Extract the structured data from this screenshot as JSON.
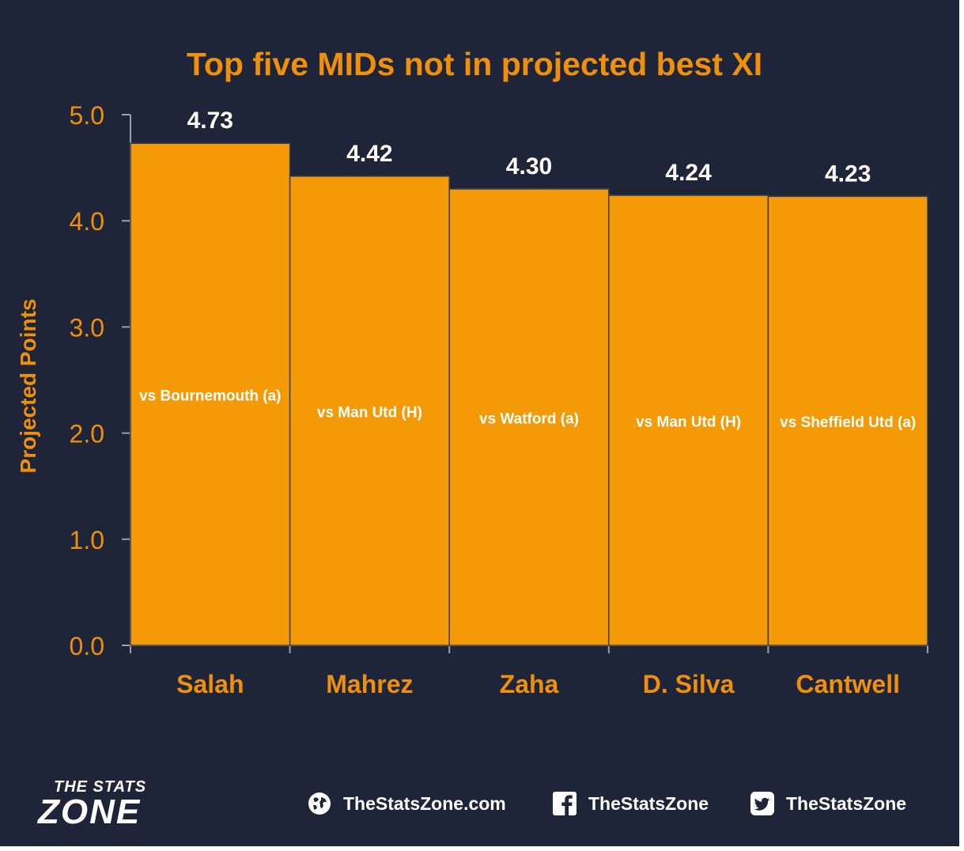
{
  "chart_data": {
    "type": "bar",
    "title": "Top five MIDs not in projected best XI",
    "ylabel": "Projected Points",
    "xlabel": "",
    "ylim": [
      0,
      5
    ],
    "yticks": [
      "0.0",
      "1.0",
      "2.0",
      "3.0",
      "4.0",
      "5.0"
    ],
    "categories": [
      "Salah",
      "Mahrez",
      "Zaha",
      "D. Silva",
      "Cantwell"
    ],
    "values": [
      4.73,
      4.42,
      4.3,
      4.24,
      4.23
    ],
    "value_labels": [
      "4.73",
      "4.42",
      "4.30",
      "4.24",
      "4.23"
    ],
    "fixtures": [
      "vs Bournemouth (a)",
      "vs Man Utd (H)",
      "vs Watford (a)",
      "vs Man Utd (H)",
      "vs Sheffield Utd (a)"
    ],
    "grid": false,
    "bar_color": "#f39a06",
    "accent_color": "#f0900a",
    "background": "#1f2538"
  },
  "footer": {
    "brand_top": "THE STATS",
    "brand_bottom": "ZONE",
    "website": "TheStatsZone.com",
    "facebook": "TheStatsZone",
    "twitter": "TheStatsZone",
    "icons": [
      "globe-icon",
      "facebook-icon",
      "twitter-icon"
    ]
  }
}
